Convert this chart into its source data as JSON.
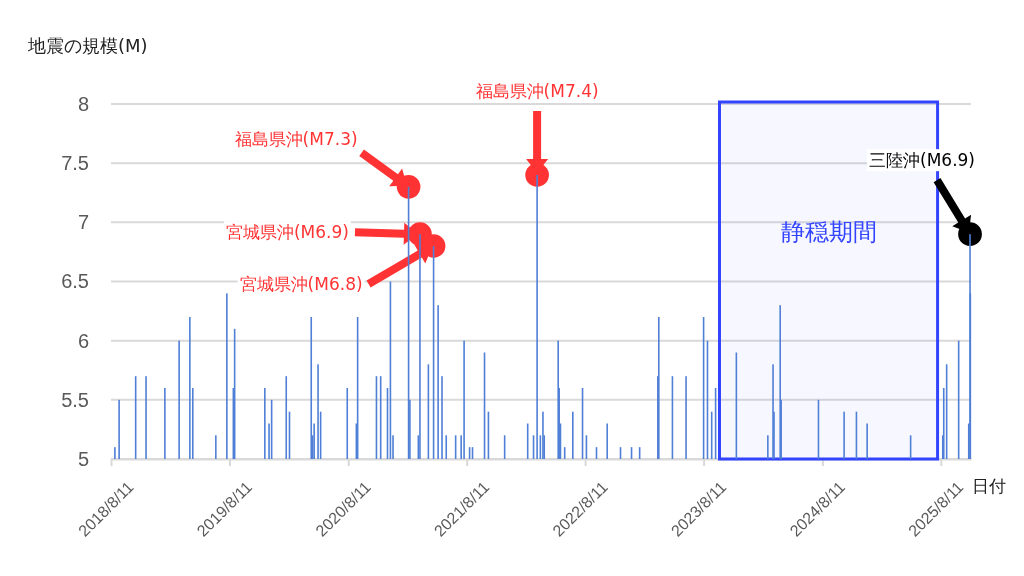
{
  "chart_data": {
    "type": "bar",
    "ylabel": "地震の規模(M)",
    "xlabel": "日付",
    "color": "#4f7fd6",
    "grid": "y",
    "xlim": [
      "2018-08-11",
      "2025-11-12"
    ],
    "xticks": [
      {
        "value": "2018-08-11",
        "label": "2018/8/11"
      },
      {
        "value": "2019-08-11",
        "label": "2019/8/11"
      },
      {
        "value": "2020-08-11",
        "label": "2020/8/11"
      },
      {
        "value": "2021-08-11",
        "label": "2021/8/11"
      },
      {
        "value": "2022-08-11",
        "label": "2022/8/11"
      },
      {
        "value": "2023-08-11",
        "label": "2023/8/11"
      },
      {
        "value": "2024-08-11",
        "label": "2024/8/11"
      },
      {
        "value": "2025-08-11",
        "label": "2025/8/11"
      }
    ],
    "ylim": [
      5,
      8
    ],
    "yticks": [
      5,
      5.5,
      6,
      6.5,
      7,
      7.5,
      8
    ],
    "x": [
      "2018-08-23",
      "2018-09-05",
      "2018-10-26",
      "2018-11-27",
      "2019-01-24",
      "2019-03-09",
      "2019-04-11",
      "2019-04-20",
      "2019-06-30",
      "2019-08-03",
      "2019-08-23",
      "2019-08-27",
      "2019-11-28",
      "2019-12-11",
      "2019-12-19",
      "2020-02-02",
      "2020-02-12",
      "2020-04-19",
      "2020-04-23",
      "2020-04-28",
      "2020-05-10",
      "2020-05-18",
      "2020-08-08",
      "2020-09-05",
      "2020-09-09",
      "2020-11-06",
      "2020-11-19",
      "2020-12-10",
      "2020-12-19",
      "2020-12-27",
      "2021-02-13",
      "2021-02-17",
      "2021-03-15",
      "2021-03-20",
      "2021-04-15",
      "2021-05-01",
      "2021-05-15",
      "2021-05-27",
      "2021-06-09",
      "2021-07-08",
      "2021-07-25",
      "2021-08-03",
      "2021-08-20",
      "2021-08-29",
      "2021-10-05",
      "2021-10-17",
      "2021-12-06",
      "2022-02-15",
      "2022-03-05",
      "2022-03-16",
      "2022-03-26",
      "2022-04-03",
      "2022-04-07",
      "2022-05-20",
      "2022-05-23",
      "2022-05-27",
      "2022-06-09",
      "2022-07-04",
      "2022-08-03",
      "2022-08-15",
      "2022-09-15",
      "2022-10-18",
      "2022-11-28",
      "2023-01-01",
      "2023-01-26",
      "2023-03-23",
      "2023-03-26",
      "2023-05-07",
      "2023-06-18",
      "2023-08-11",
      "2023-08-23",
      "2023-09-05",
      "2023-09-17",
      "2023-11-20",
      "2024-02-25",
      "2024-03-12",
      "2024-03-15",
      "2024-04-03",
      "2024-04-06",
      "2024-07-30",
      "2024-10-17",
      "2024-11-24",
      "2024-12-27",
      "2025-05-10",
      "2025-08-17",
      "2025-08-20",
      "2025-08-29",
      "2025-10-05",
      "2025-11-05",
      "2025-11-09",
      "2025-11-10"
    ],
    "values": [
      5.1,
      5.5,
      5.7,
      5.7,
      5.6,
      6.0,
      6.2,
      5.6,
      5.2,
      6.4,
      5.6,
      6.1,
      5.6,
      5.3,
      5.5,
      5.7,
      5.4,
      6.2,
      5.2,
      5.3,
      5.8,
      5.4,
      5.6,
      5.3,
      6.2,
      5.7,
      5.7,
      5.6,
      6.5,
      5.2,
      7.3,
      5.5,
      5.2,
      6.9,
      5.8,
      6.8,
      6.3,
      5.7,
      5.2,
      5.2,
      5.2,
      6.0,
      5.1,
      5.1,
      5.9,
      5.4,
      5.2,
      5.3,
      5.2,
      7.4,
      5.2,
      5.4,
      5.2,
      6.0,
      5.6,
      5.3,
      5.1,
      5.4,
      5.6,
      5.2,
      5.1,
      5.3,
      5.1,
      5.1,
      5.1,
      5.7,
      6.2,
      5.7,
      5.7,
      6.2,
      6.0,
      5.4,
      5.6,
      5.9,
      5.2,
      5.8,
      5.4,
      6.3,
      5.5,
      5.5,
      5.4,
      5.4,
      5.3,
      5.2,
      5.2,
      5.6,
      5.8,
      6.0,
      5.3,
      6.9,
      6.4
    ],
    "series": [
      {
        "type": "scatter",
        "marker": "circle",
        "x": [
          "2021-02-13",
          "2021-03-20",
          "2021-05-01",
          "2022-03-16",
          "2025-11-09"
        ],
        "values": [
          7.3,
          6.9,
          6.8,
          7.4,
          6.9
        ],
        "colors": [
          "#ff3333",
          "#ff3333",
          "#ff3333",
          "#ff3333",
          "#000000"
        ]
      }
    ],
    "annotations": [
      "福島県沖(M7.3)",
      "宮城県沖(M6.9)",
      "宮城県沖(M6.8)",
      "福島県沖(M7.4)",
      "三陸沖(M6.9)"
    ],
    "bands": [
      {
        "axis": "x",
        "from": "2023-09-29",
        "to": "2025-08-01",
        "label": "静穏期間",
        "color": "#3344ff"
      }
    ]
  }
}
